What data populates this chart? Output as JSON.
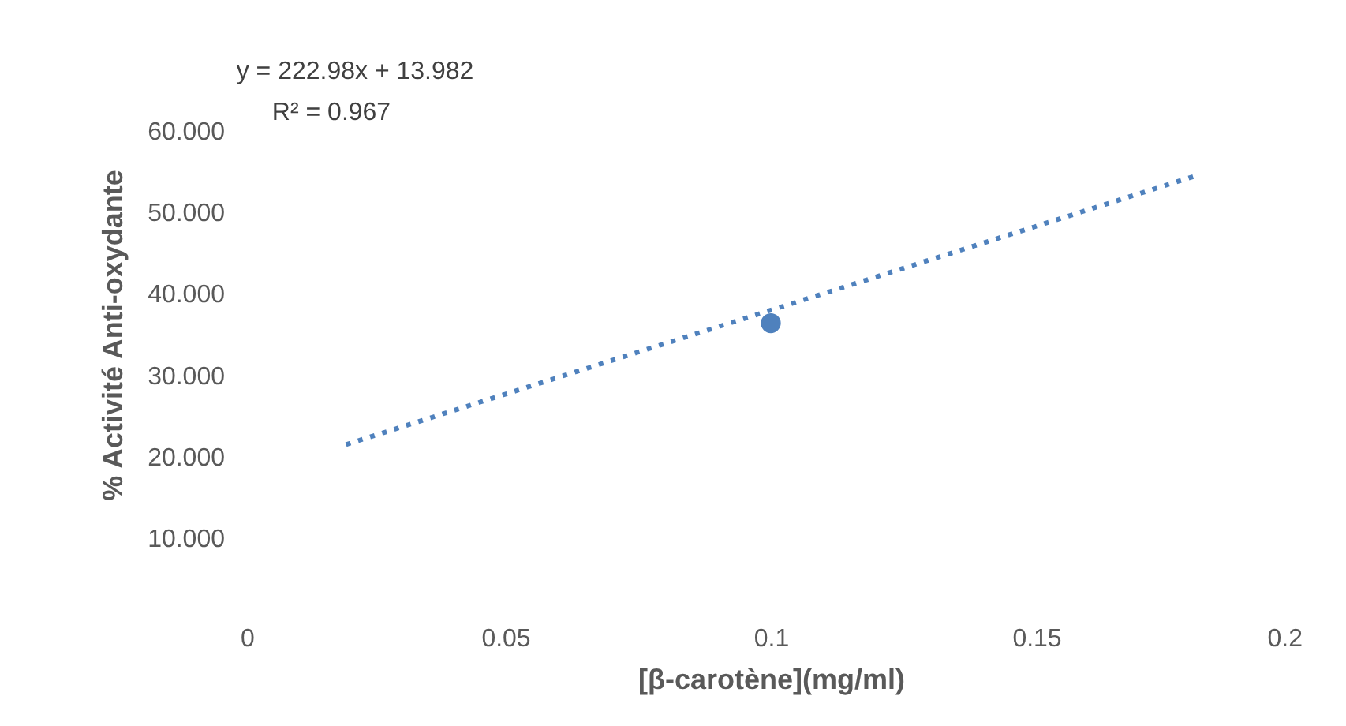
{
  "chart_data": {
    "type": "scatter",
    "xlabel": "[β-carotène](mg/ml)",
    "ylabel": "% Activité Anti-oxydante",
    "annotations": [
      "y = 222.98x + 13.982",
      "R² = 0.967"
    ],
    "xlim": [
      0,
      0.2
    ],
    "xticks": [
      0,
      0.05,
      0.1,
      0.15,
      0.2
    ],
    "ylim": [
      10,
      60
    ],
    "yticks": [
      {
        "value": 10,
        "label": "10.000"
      },
      {
        "value": 20,
        "label": "20.000"
      },
      {
        "value": 30,
        "label": "30.000"
      },
      {
        "value": 40,
        "label": "40.000"
      },
      {
        "value": 50,
        "label": "50.000"
      },
      {
        "value": 60,
        "label": "60.000"
      }
    ],
    "grid": false,
    "series": [
      {
        "color": "#4f81bd",
        "x": [
          0.1
        ],
        "values": [
          36.4
        ],
        "marker": "circle"
      },
      {
        "type": "line",
        "color": "#4f81bd",
        "x": [
          0.02,
          0.18
        ],
        "values": [
          21.5,
          54.5
        ],
        "line_style": "dotted",
        "marker": "none"
      }
    ]
  }
}
